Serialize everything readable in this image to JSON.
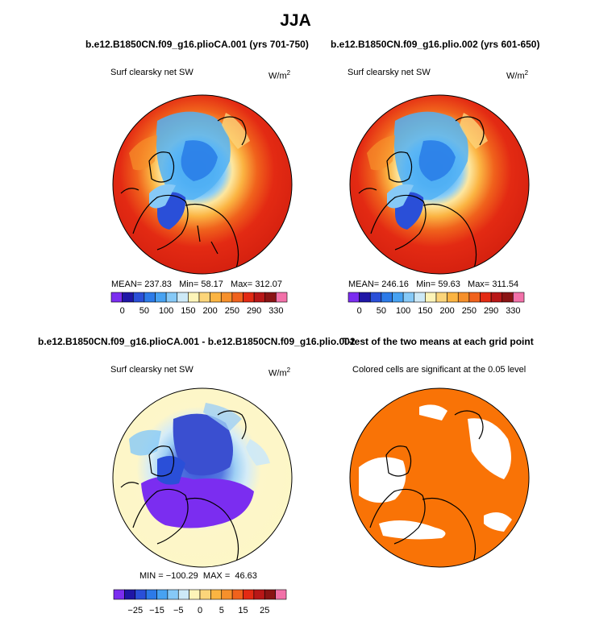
{
  "title": "JJA",
  "panels": [
    {
      "title": "b.e12.B1850CN.f09_g16.plioCA.001 (yrs 701-750)",
      "left_label": "Surf clearsky net SW",
      "units": "W/m",
      "units_sup": "2",
      "stats": {
        "mean_label": "MEAN=",
        "mean": "237.83",
        "min_label": "Min=",
        "min": "58.17",
        "max_label": "Max=",
        "max": "312.07"
      }
    },
    {
      "title": "b.e12.B1850CN.f09_g16.plio.002 (yrs 601-650)",
      "left_label": "Surf clearsky net SW",
      "units": "W/m",
      "units_sup": "2",
      "stats": {
        "mean_label": "MEAN=",
        "mean": "246.16",
        "min_label": "Min=",
        "min": "59.63",
        "max_label": "Max=",
        "max": "311.54"
      }
    },
    {
      "title": "b.e12.B1850CN.f09_g16.plioCA.001 - b.e12.B1850CN.f09_g16.plio.002",
      "left_label": "Surf clearsky net SW",
      "units": "W/m",
      "units_sup": "2",
      "stats": {
        "min_label": "MIN =",
        "min": "−100.29",
        "max_label": "MAX =",
        "max": "46.63"
      }
    },
    {
      "title": "T-test of the two means at each grid point",
      "left_label": "Colored cells are significant at the 0.05 level"
    }
  ],
  "chart_data": [
    {
      "type": "heatmap",
      "projection": "north polar stereographic",
      "season": "JJA",
      "title": "b.e12.B1850CN.f09_g16.plioCA.001 (yrs 701-750)",
      "variable": "Surf clearsky net SW",
      "units": "W/m2",
      "mean": 237.83,
      "min": 58.17,
      "max": 312.07,
      "colorbar": {
        "levels": [
          0,
          25,
          50,
          75,
          100,
          125,
          150,
          175,
          200,
          225,
          250,
          270,
          290,
          310,
          330
        ],
        "tick_labels": [
          "0",
          "50",
          "100",
          "150",
          "200",
          "250",
          "290",
          "330"
        ],
        "colors": [
          "#7b2df0",
          "#1f16a6",
          "#2a4fd8",
          "#2c7ae8",
          "#47a2f2",
          "#86c9f7",
          "#cde9f7",
          "#fdf4b8",
          "#fcd57a",
          "#fbb442",
          "#f6902b",
          "#f0621c",
          "#e32a13",
          "#b81717",
          "#8a1414",
          "#f271a9"
        ]
      }
    },
    {
      "type": "heatmap",
      "projection": "north polar stereographic",
      "season": "JJA",
      "title": "b.e12.B1850CN.f09_g16.plio.002 (yrs 601-650)",
      "variable": "Surf clearsky net SW",
      "units": "W/m2",
      "mean": 246.16,
      "min": 59.63,
      "max": 311.54,
      "colorbar": {
        "levels": [
          0,
          25,
          50,
          75,
          100,
          125,
          150,
          175,
          200,
          225,
          250,
          270,
          290,
          310,
          330
        ],
        "tick_labels": [
          "0",
          "50",
          "100",
          "150",
          "200",
          "250",
          "290",
          "330"
        ],
        "colors": [
          "#7b2df0",
          "#1f16a6",
          "#2a4fd8",
          "#2c7ae8",
          "#47a2f2",
          "#86c9f7",
          "#cde9f7",
          "#fdf4b8",
          "#fcd57a",
          "#fbb442",
          "#f6902b",
          "#f0621c",
          "#e32a13",
          "#b81717",
          "#8a1414",
          "#f271a9"
        ]
      }
    },
    {
      "type": "heatmap",
      "projection": "north polar stereographic",
      "season": "JJA",
      "title": "b.e12.B1850CN.f09_g16.plioCA.001 - b.e12.B1850CN.f09_g16.plio.002",
      "variable": "Surf clearsky net SW",
      "units": "W/m2",
      "min": -100.29,
      "max": 46.63,
      "colorbar": {
        "levels": [
          -30,
          -25,
          -20,
          -15,
          -10,
          -5,
          -2,
          0,
          2,
          5,
          10,
          15,
          20,
          25,
          30
        ],
        "tick_labels": [
          "−25",
          "−15",
          "−5",
          "0",
          "5",
          "15",
          "25"
        ],
        "colors": [
          "#7b2df0",
          "#1f16a6",
          "#2a4fd8",
          "#2c7ae8",
          "#47a2f2",
          "#86c9f7",
          "#cde9f7",
          "#fdf4b8",
          "#fcd57a",
          "#fbb442",
          "#f6902b",
          "#f0621c",
          "#e32a13",
          "#b81717",
          "#8a1414",
          "#f271a9"
        ]
      }
    },
    {
      "type": "heatmap",
      "projection": "north polar stereographic",
      "title": "T-test of the two means at each grid point",
      "note": "Colored cells are significant at the 0.05 level",
      "significant_color": "#f97306",
      "not_significant_color": "#ffffff"
    }
  ]
}
